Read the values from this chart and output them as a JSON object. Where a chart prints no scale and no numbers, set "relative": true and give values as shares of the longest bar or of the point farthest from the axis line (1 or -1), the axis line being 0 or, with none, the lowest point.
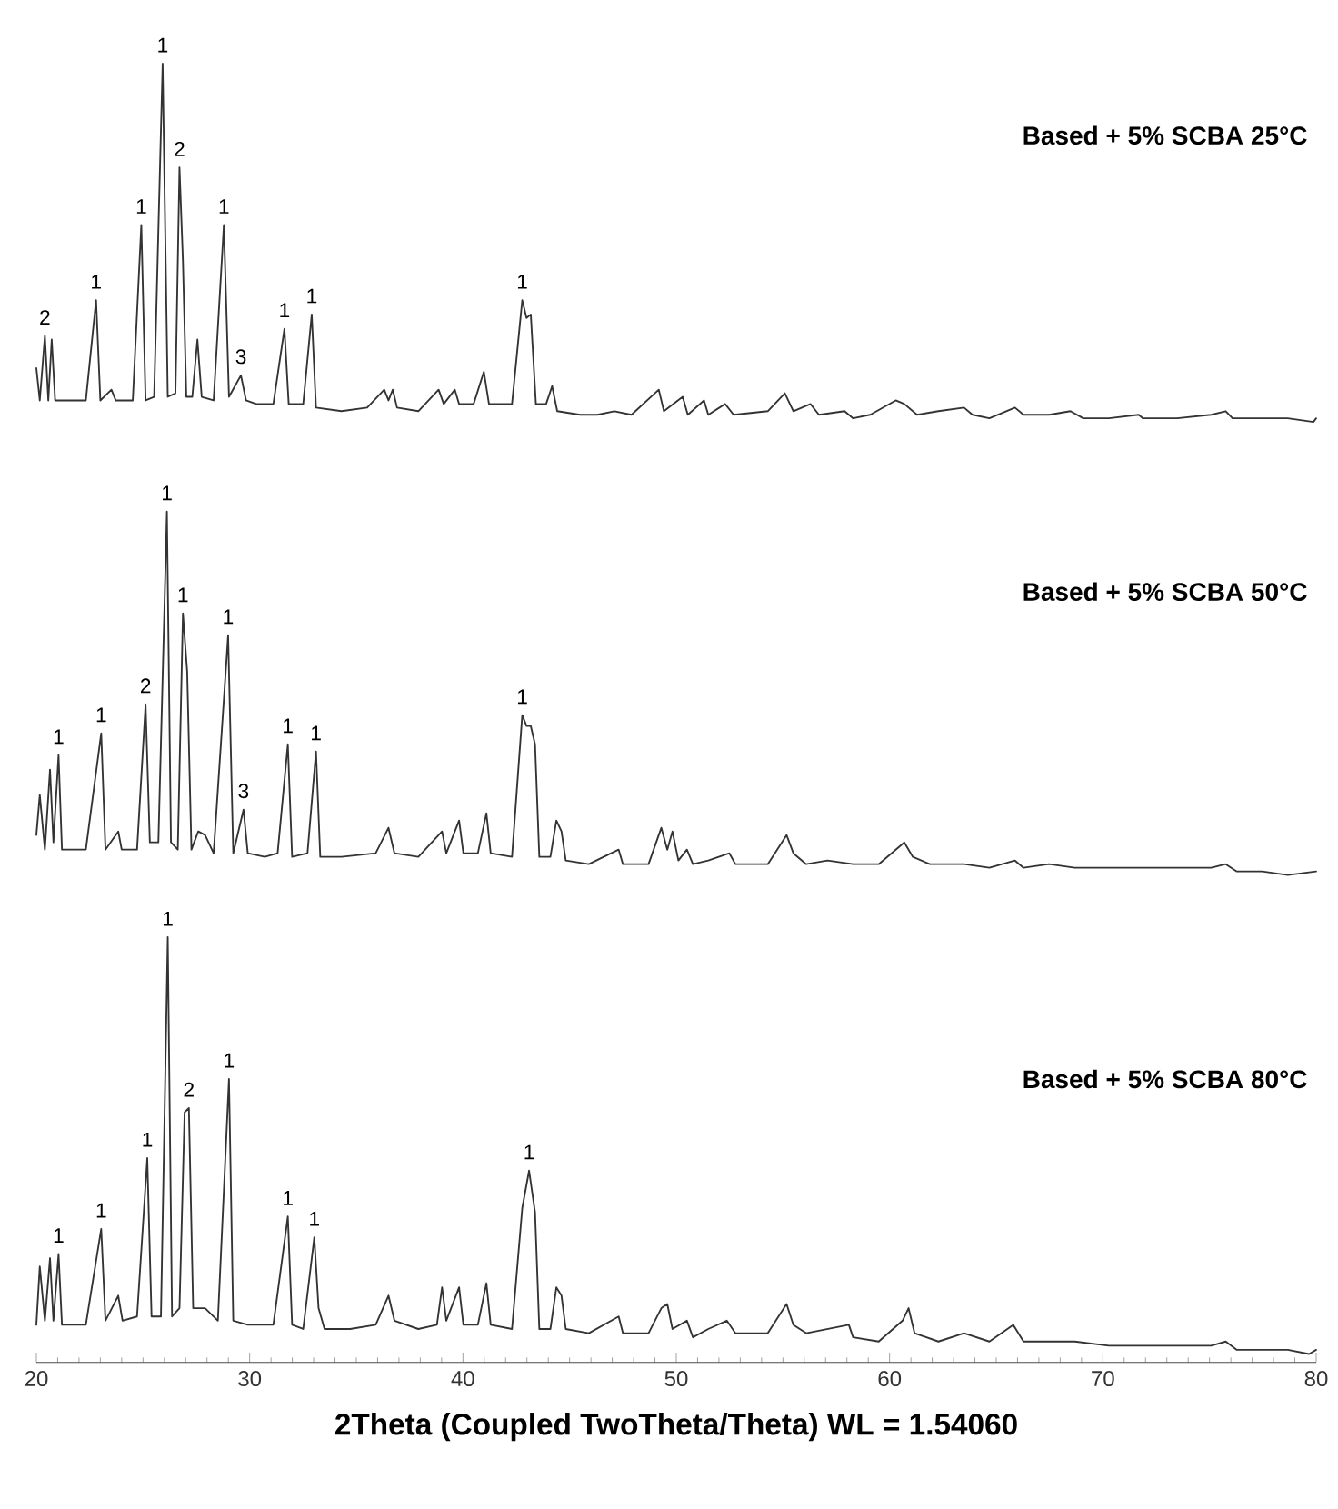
{
  "chart_data": [
    {
      "type": "line",
      "relative": true,
      "xlim": [
        20,
        80
      ],
      "tick_labels": false,
      "series": [
        {
          "name": "Based + 5% SCBA 25°C",
          "color": "#333333",
          "x": [
            20,
            20.16,
            20.4,
            20.56,
            20.72,
            20.88,
            21.32,
            22.32,
            22.8,
            23.0,
            23.52,
            23.72,
            24.52,
            24.92,
            25.12,
            25.52,
            25.92,
            26.16,
            26.52,
            26.71,
            26.87,
            27.03,
            27.31,
            27.55,
            27.75,
            28.31,
            28.79,
            29.03,
            29.59,
            29.83,
            30.31,
            31.11,
            31.63,
            31.83,
            32.51,
            32.91,
            33.11,
            34.31,
            35.51,
            36.31,
            36.51,
            36.71,
            36.91,
            37.91,
            38.86,
            39.1,
            39.62,
            39.82,
            40.5,
            40.98,
            41.22,
            42.3,
            42.78,
            42.98,
            43.18,
            43.42,
            43.9,
            44.18,
            44.42,
            45.5,
            46.3,
            47.1,
            47.9,
            49.18,
            49.42,
            50.3,
            50.54,
            51.3,
            51.5,
            52.29,
            52.69,
            54.29,
            55.09,
            55.49,
            56.29,
            56.69,
            57.89,
            58.29,
            59.09,
            60.29,
            60.69,
            61.29,
            62.29,
            63.49,
            63.89,
            64.68,
            65.88,
            66.28,
            67.48,
            68.48,
            69.08,
            70.28,
            71.68,
            71.88,
            73.48,
            75.08,
            75.76,
            76.08,
            77.47,
            78.67,
            79.87,
            80
          ],
          "values": [
            0.15,
            0.06,
            0.24,
            0.06,
            0.23,
            0.06,
            0.06,
            0.06,
            0.34,
            0.06,
            0.09,
            0.06,
            0.06,
            0.55,
            0.06,
            0.07,
            1.0,
            0.07,
            0.08,
            0.71,
            0.45,
            0.07,
            0.07,
            0.23,
            0.07,
            0.06,
            0.55,
            0.07,
            0.13,
            0.06,
            0.05,
            0.05,
            0.26,
            0.05,
            0.05,
            0.3,
            0.04,
            0.03,
            0.04,
            0.09,
            0.06,
            0.09,
            0.04,
            0.03,
            0.09,
            0.05,
            0.09,
            0.05,
            0.05,
            0.14,
            0.05,
            0.05,
            0.34,
            0.29,
            0.3,
            0.05,
            0.05,
            0.1,
            0.03,
            0.02,
            0.02,
            0.03,
            0.02,
            0.09,
            0.03,
            0.07,
            0.02,
            0.06,
            0.02,
            0.05,
            0.02,
            0.03,
            0.08,
            0.03,
            0.05,
            0.02,
            0.03,
            0.01,
            0.02,
            0.06,
            0.05,
            0.02,
            0.03,
            0.04,
            0.02,
            0.01,
            0.04,
            0.02,
            0.02,
            0.03,
            0.01,
            0.01,
            0.02,
            0.01,
            0.01,
            0.02,
            0.03,
            0.01,
            0.01,
            0.01,
            0,
            0.01
          ]
        }
      ],
      "annotations": [
        {
          "text": "2",
          "x": 20.4,
          "y": 0.24
        },
        {
          "text": "1",
          "x": 22.8,
          "y": 0.34
        },
        {
          "text": "1",
          "x": 24.92,
          "y": 0.55
        },
        {
          "text": "1",
          "x": 25.92,
          "y": 1.0
        },
        {
          "text": "2",
          "x": 26.71,
          "y": 0.71
        },
        {
          "text": "1",
          "x": 28.79,
          "y": 0.55
        },
        {
          "text": "3",
          "x": 29.59,
          "y": 0.13
        },
        {
          "text": "1",
          "x": 31.63,
          "y": 0.26
        },
        {
          "text": "1",
          "x": 32.91,
          "y": 0.3
        },
        {
          "text": "1",
          "x": 42.78,
          "y": 0.34
        }
      ]
    },
    {
      "type": "line",
      "relative": true,
      "xlim": [
        20,
        80
      ],
      "tick_labels": false,
      "series": [
        {
          "name": "Based + 5% SCBA 50°C",
          "color": "#333333",
          "x": [
            20,
            20.16,
            20.4,
            20.64,
            20.8,
            21.04,
            21.2,
            21.92,
            22.32,
            23.04,
            23.24,
            23.84,
            24.0,
            24.72,
            25.12,
            25.32,
            25.72,
            26.12,
            26.31,
            26.63,
            26.87,
            27.07,
            27.27,
            27.59,
            27.91,
            28.31,
            28.99,
            29.23,
            29.71,
            29.91,
            30.71,
            31.31,
            31.79,
            31.99,
            32.71,
            33.11,
            33.31,
            34.31,
            35.91,
            36.51,
            36.79,
            37.91,
            39.02,
            39.22,
            39.82,
            40.02,
            40.7,
            41.1,
            41.3,
            42.3,
            42.78,
            42.98,
            43.18,
            43.38,
            43.58,
            44.1,
            44.38,
            44.62,
            44.82,
            45.9,
            47.3,
            47.5,
            48.7,
            49.3,
            49.58,
            49.82,
            50.1,
            50.5,
            50.78,
            51.5,
            52.49,
            52.77,
            54.29,
            55.17,
            55.49,
            56.09,
            57.09,
            58.29,
            59.49,
            60.29,
            60.69,
            61.09,
            61.89,
            63.49,
            64.68,
            65.88,
            66.28,
            67.48,
            68.68,
            70.28,
            71.88,
            73.48,
            75.08,
            75.76,
            76.28,
            77.47,
            78.67,
            80
          ],
          "values": [
            0.11,
            0.22,
            0.07,
            0.29,
            0.09,
            0.33,
            0.07,
            0.07,
            0.07,
            0.39,
            0.07,
            0.12,
            0.07,
            0.07,
            0.47,
            0.09,
            0.09,
            1.0,
            0.09,
            0.07,
            0.72,
            0.56,
            0.07,
            0.12,
            0.11,
            0.06,
            0.66,
            0.06,
            0.18,
            0.06,
            0.05,
            0.06,
            0.36,
            0.05,
            0.06,
            0.34,
            0.05,
            0.05,
            0.06,
            0.13,
            0.06,
            0.05,
            0.12,
            0.06,
            0.15,
            0.06,
            0.06,
            0.17,
            0.06,
            0.05,
            0.44,
            0.41,
            0.41,
            0.36,
            0.05,
            0.05,
            0.15,
            0.12,
            0.04,
            0.03,
            0.07,
            0.03,
            0.03,
            0.13,
            0.07,
            0.12,
            0.04,
            0.07,
            0.03,
            0.04,
            0.06,
            0.03,
            0.03,
            0.11,
            0.06,
            0.03,
            0.04,
            0.03,
            0.03,
            0.07,
            0.09,
            0.05,
            0.03,
            0.03,
            0.02,
            0.04,
            0.02,
            0.03,
            0.02,
            0.02,
            0.02,
            0.02,
            0.02,
            0.03,
            0.01,
            0.01,
            0,
            0.01
          ]
        }
      ],
      "annotations": [
        {
          "text": "1",
          "x": 21.04,
          "y": 0.33
        },
        {
          "text": "1",
          "x": 23.04,
          "y": 0.39
        },
        {
          "text": "2",
          "x": 25.12,
          "y": 0.47
        },
        {
          "text": "1",
          "x": 26.12,
          "y": 1.0
        },
        {
          "text": "1",
          "x": 26.87,
          "y": 0.72
        },
        {
          "text": "1",
          "x": 28.99,
          "y": 0.66
        },
        {
          "text": "3",
          "x": 29.71,
          "y": 0.18
        },
        {
          "text": "1",
          "x": 31.79,
          "y": 0.36
        },
        {
          "text": "1",
          "x": 33.11,
          "y": 0.34
        },
        {
          "text": "1",
          "x": 42.78,
          "y": 0.44
        }
      ]
    },
    {
      "type": "line",
      "relative": true,
      "xlim": [
        20,
        80
      ],
      "xticks": [
        20,
        30,
        40,
        50,
        60,
        70,
        80
      ],
      "tick_labels": "x",
      "xlabel": "2Theta (Coupled TwoTheta/Theta) WL = 1.54060",
      "series": [
        {
          "name": "Based + 5% SCBA 80°C",
          "color": "#333333",
          "x": [
            20,
            20.16,
            20.4,
            20.64,
            20.8,
            21.04,
            21.2,
            21.92,
            22.32,
            23.04,
            23.24,
            23.84,
            24.04,
            24.72,
            25.2,
            25.4,
            25.84,
            26.16,
            26.36,
            26.71,
            26.95,
            27.15,
            27.35,
            27.91,
            28.51,
            29.03,
            29.23,
            29.91,
            31.11,
            31.79,
            31.99,
            32.51,
            33.03,
            33.23,
            33.51,
            34.71,
            35.91,
            36.51,
            36.79,
            37.91,
            38.78,
            39.02,
            39.22,
            39.82,
            40.02,
            40.7,
            41.1,
            41.3,
            42.3,
            42.78,
            43.1,
            43.38,
            43.58,
            44.1,
            44.38,
            44.62,
            44.82,
            45.9,
            47.3,
            47.5,
            48.7,
            49.3,
            49.58,
            49.82,
            50.5,
            50.78,
            51.5,
            52.37,
            52.77,
            54.29,
            55.17,
            55.49,
            56.09,
            58.09,
            58.29,
            59.49,
            60.61,
            60.89,
            61.17,
            62.29,
            63.49,
            64.68,
            65.8,
            66.28,
            67.48,
            68.68,
            70.28,
            71.88,
            73.48,
            75.08,
            75.76,
            76.28,
            77.47,
            78.67,
            79.67,
            80
          ],
          "values": [
            0.07,
            0.21,
            0.08,
            0.23,
            0.08,
            0.24,
            0.07,
            0.07,
            0.07,
            0.3,
            0.08,
            0.14,
            0.08,
            0.09,
            0.47,
            0.09,
            0.09,
            1.0,
            0.09,
            0.11,
            0.58,
            0.59,
            0.11,
            0.11,
            0.08,
            0.66,
            0.08,
            0.07,
            0.07,
            0.33,
            0.07,
            0.06,
            0.28,
            0.11,
            0.06,
            0.06,
            0.07,
            0.14,
            0.08,
            0.06,
            0.07,
            0.16,
            0.08,
            0.16,
            0.07,
            0.07,
            0.17,
            0.07,
            0.06,
            0.35,
            0.44,
            0.34,
            0.06,
            0.06,
            0.16,
            0.14,
            0.06,
            0.05,
            0.09,
            0.05,
            0.05,
            0.11,
            0.12,
            0.06,
            0.08,
            0.04,
            0.06,
            0.08,
            0.05,
            0.05,
            0.12,
            0.07,
            0.05,
            0.07,
            0.04,
            0.03,
            0.08,
            0.11,
            0.05,
            0.03,
            0.05,
            0.03,
            0.07,
            0.03,
            0.03,
            0.03,
            0.02,
            0.02,
            0.02,
            0.02,
            0.03,
            0.01,
            0.01,
            0.01,
            0,
            0.01
          ]
        }
      ],
      "annotations": [
        {
          "text": "1",
          "x": 21.04,
          "y": 0.24
        },
        {
          "text": "1",
          "x": 23.04,
          "y": 0.3
        },
        {
          "text": "1",
          "x": 25.2,
          "y": 0.47
        },
        {
          "text": "1",
          "x": 26.16,
          "y": 1.0
        },
        {
          "text": "2",
          "x": 27.15,
          "y": 0.59
        },
        {
          "text": "1",
          "x": 29.03,
          "y": 0.66
        },
        {
          "text": "1",
          "x": 31.79,
          "y": 0.33
        },
        {
          "text": "1",
          "x": 33.03,
          "y": 0.28
        },
        {
          "text": "1",
          "x": 43.1,
          "y": 0.44
        }
      ]
    }
  ]
}
